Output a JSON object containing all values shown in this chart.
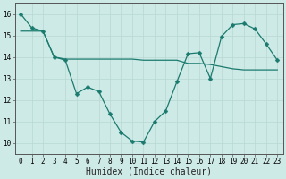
{
  "line1_x": [
    0,
    1,
    2,
    3,
    4,
    5,
    6,
    7,
    8,
    9,
    10,
    11,
    12,
    13,
    14,
    15,
    16,
    17,
    18,
    19,
    20,
    21,
    22,
    23
  ],
  "line1_y": [
    16.0,
    15.35,
    15.2,
    14.0,
    13.85,
    12.3,
    12.6,
    12.4,
    11.35,
    10.5,
    10.1,
    10.05,
    11.0,
    11.5,
    12.85,
    14.15,
    14.2,
    13.0,
    14.95,
    15.5,
    15.55,
    15.3,
    14.6,
    13.85
  ],
  "line2_x": [
    0,
    1,
    2,
    3,
    4,
    5,
    6,
    7,
    8,
    9,
    10,
    11,
    12,
    13,
    14,
    15,
    16,
    17,
    18,
    19,
    20,
    21,
    22,
    23
  ],
  "line2_y": [
    15.2,
    15.2,
    15.2,
    14.0,
    13.9,
    13.9,
    13.9,
    13.9,
    13.9,
    13.9,
    13.9,
    13.85,
    13.85,
    13.85,
    13.85,
    13.7,
    13.7,
    13.65,
    13.55,
    13.45,
    13.4,
    13.4,
    13.4,
    13.4
  ],
  "color": "#1a7a6e",
  "bg_color": "#ceeae6",
  "grid_major_color": "#b8d8d4",
  "grid_minor_color": "#ceeae6",
  "xlabel": "Humidex (Indice chaleur)",
  "ylim": [
    9.5,
    16.5
  ],
  "xlim": [
    -0.5,
    23.5
  ],
  "yticks": [
    10,
    11,
    12,
    13,
    14,
    15,
    16
  ],
  "xticks": [
    0,
    1,
    2,
    3,
    4,
    5,
    6,
    7,
    8,
    9,
    10,
    11,
    12,
    13,
    14,
    15,
    16,
    17,
    18,
    19,
    20,
    21,
    22,
    23
  ],
  "marker": "D",
  "markersize": 2.5,
  "linewidth": 0.9,
  "xlabel_fontsize": 7,
  "tick_fontsize": 5.5,
  "spine_color": "#555555"
}
